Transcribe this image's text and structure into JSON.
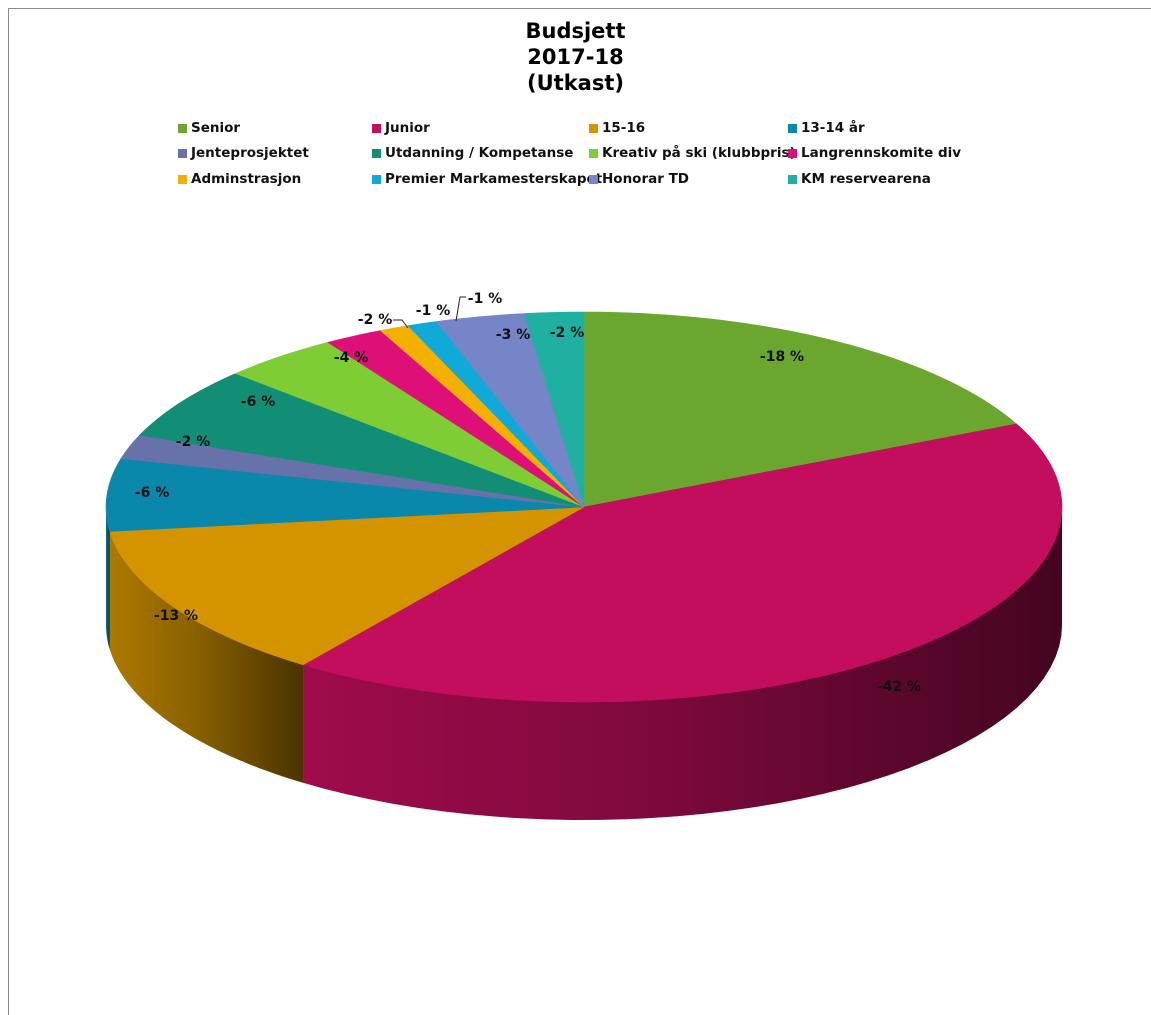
{
  "chart_data": {
    "type": "pie",
    "title_lines": [
      "Budsjett",
      "2017-18",
      "(Utkast)"
    ],
    "legend_placement": "top",
    "categories": [
      "Senior",
      "Junior",
      "15-16",
      "13-14 år",
      "Jenteprosjektet",
      "Utdanning / Kompetanse",
      "Kreativ på ski (klubbpris)",
      "Langrennskomite div",
      "Adminstrasjon",
      "Premier Markamesterskapet",
      "Honorar TD",
      "KM reservearena"
    ],
    "values": [
      -18,
      -42,
      -13,
      -6,
      -2,
      -6,
      -4,
      -2,
      -1,
      -1,
      -3,
      -2
    ],
    "data_labels": [
      "-18 %",
      "-42 %",
      "-13 %",
      "-6 %",
      "-2 %",
      "-6 %",
      "-4 %",
      "-2 %",
      "-1 %",
      "-1 %",
      "-3 %",
      "-2 %"
    ],
    "colors": [
      "#6ba72f",
      "#c20e5c",
      "#d39400",
      "#0a88ab",
      "#6672a9",
      "#128e77",
      "#7fcd35",
      "#df0f78",
      "#f3b000",
      "#10aad8",
      "#7585c7",
      "#1fb0a1"
    ]
  }
}
